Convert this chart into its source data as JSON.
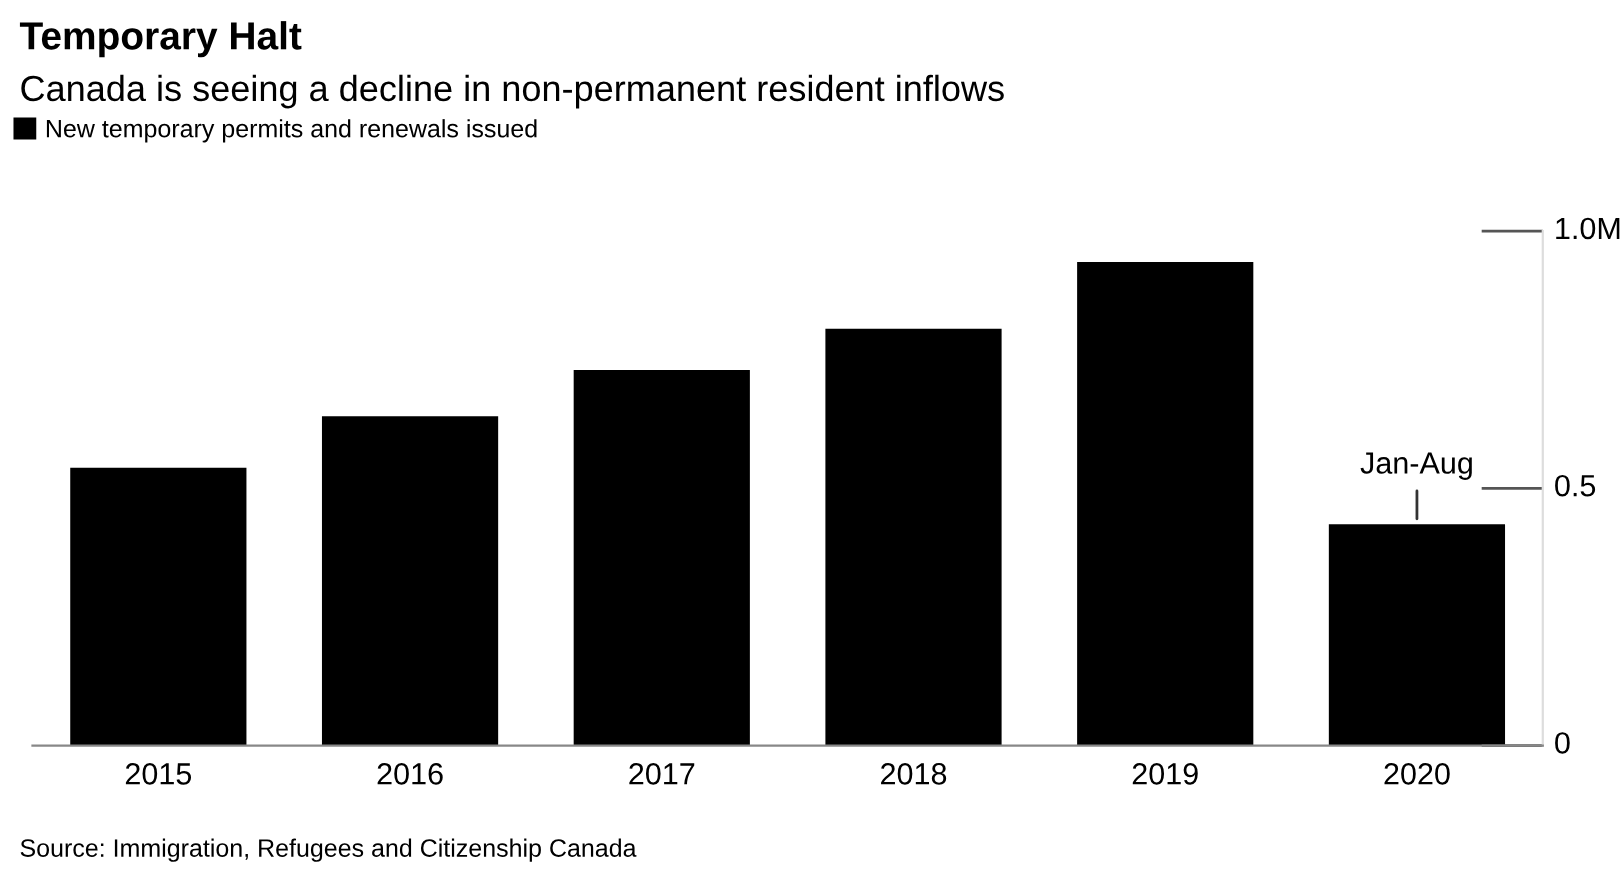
{
  "chart_data": {
    "type": "bar",
    "title": "Temporary Halt",
    "subtitle": "Canada is seeing a decline in non-permanent resident inflows",
    "categories": [
      "2015",
      "2016",
      "2017",
      "2018",
      "2019",
      "2020"
    ],
    "series": [
      {
        "name": "New temporary permits and renewals issued",
        "color": "#000000",
        "values": [
          0.54,
          0.64,
          0.73,
          0.81,
          0.94,
          0.43
        ]
      }
    ],
    "ylim": [
      0,
      1.0
    ],
    "yticks": [
      0,
      0.5,
      {
        "value": 1.0,
        "label": "1.0M"
      }
    ],
    "annotations": [
      {
        "text": "Jan-Aug",
        "x": "2020",
        "y": 0.43
      },
      "Source: Immigration, Refugees and Citizenship Canada"
    ],
    "legend": "top left",
    "grid": false
  }
}
